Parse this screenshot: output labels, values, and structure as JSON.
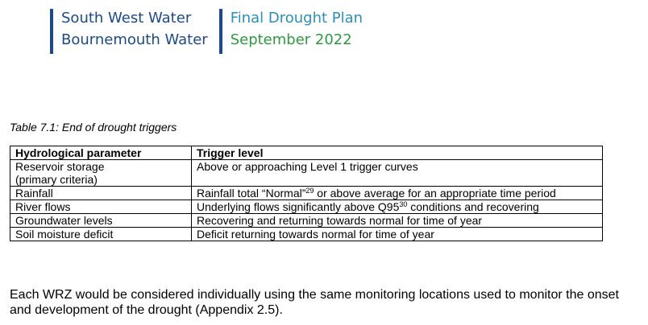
{
  "header": {
    "org_line1": "South West Water",
    "org_line2": "Bournemouth Water",
    "plan_line1": "Final Drought Plan",
    "plan_line2": "September 2022"
  },
  "caption": "Table 7.1: End of drought triggers",
  "table": {
    "headers": [
      "Hydrological parameter",
      "Trigger level"
    ],
    "rows": [
      {
        "param_line1": "Reservoir storage",
        "param_line2": "(primary criteria)",
        "trigger": "Above or approaching Level 1 trigger curves"
      },
      {
        "param": "Rainfall",
        "trigger_before": "Rainfall total “Normal”",
        "footnote": "29",
        "trigger_after": " or above average for an appropriate time period"
      },
      {
        "param": "River flows",
        "trigger_before": "Underlying flows significantly above Q95",
        "footnote": "30",
        "trigger_after": " conditions and recovering"
      },
      {
        "param": "Groundwater levels",
        "trigger": "Recovering and returning towards normal for time of year"
      },
      {
        "param": "Soil moisture deficit",
        "trigger": "Deficit returning towards normal for time of year"
      }
    ]
  },
  "paragraph": "Each WRZ would be considered individually using the same monitoring locations used to monitor the onset and development of the drought (Appendix 2.5)."
}
